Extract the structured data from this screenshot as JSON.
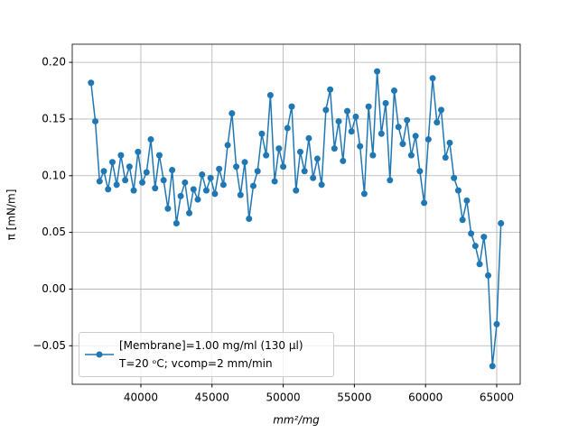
{
  "chart_data": {
    "type": "line",
    "xlabel": "mm²/mg",
    "ylabel": "π [mN/m]",
    "x": [
      36500,
      36800,
      37100,
      37400,
      37700,
      38000,
      38300,
      38600,
      38900,
      39200,
      39500,
      39800,
      40100,
      40400,
      40700,
      41000,
      41300,
      41600,
      41900,
      42200,
      42500,
      42800,
      43100,
      43400,
      43700,
      44000,
      44300,
      44600,
      44900,
      45200,
      45500,
      45800,
      46100,
      46400,
      46700,
      47000,
      47300,
      47600,
      47900,
      48200,
      48500,
      48800,
      49100,
      49400,
      49700,
      50000,
      50300,
      50600,
      50900,
      51200,
      51500,
      51800,
      52100,
      52400,
      52700,
      53000,
      53300,
      53600,
      53900,
      54200,
      54500,
      54800,
      55100,
      55400,
      55700,
      56000,
      56300,
      56600,
      56900,
      57200,
      57500,
      57800,
      58100,
      58400,
      58700,
      59000,
      59300,
      59600,
      59900,
      60200,
      60500,
      60800,
      61100,
      61400,
      61700,
      62000,
      62300,
      62600,
      62900,
      63200,
      63500,
      63800,
      64100,
      64400,
      64700,
      65000,
      65300
    ],
    "series": [
      {
        "name": "[Membrane]=1.00 mg/ml (130 µl)\nT=20 ᵒC; vcomp=2 mm/min",
        "color": "#1f77b4",
        "values": [
          0.182,
          0.148,
          0.095,
          0.104,
          0.088,
          0.112,
          0.092,
          0.118,
          0.096,
          0.108,
          0.087,
          0.121,
          0.094,
          0.103,
          0.132,
          0.089,
          0.118,
          0.096,
          0.071,
          0.105,
          0.058,
          0.082,
          0.094,
          0.067,
          0.088,
          0.079,
          0.101,
          0.087,
          0.098,
          0.084,
          0.106,
          0.092,
          0.127,
          0.155,
          0.108,
          0.083,
          0.112,
          0.062,
          0.091,
          0.104,
          0.137,
          0.118,
          0.171,
          0.095,
          0.124,
          0.108,
          0.142,
          0.161,
          0.087,
          0.121,
          0.104,
          0.133,
          0.098,
          0.115,
          0.092,
          0.158,
          0.176,
          0.124,
          0.148,
          0.113,
          0.157,
          0.139,
          0.152,
          0.126,
          0.084,
          0.161,
          0.118,
          0.192,
          0.137,
          0.164,
          0.096,
          0.175,
          0.143,
          0.128,
          0.149,
          0.118,
          0.135,
          0.104,
          0.076,
          0.132,
          0.186,
          0.147,
          0.158,
          0.116,
          0.129,
          0.098,
          0.087,
          0.061,
          0.078,
          0.049,
          0.038,
          0.022,
          0.046,
          0.012,
          -0.068,
          -0.031,
          0.058
        ]
      }
    ],
    "xlim": [
      35180,
      66650
    ],
    "ylim": [
      -0.084,
      0.216
    ],
    "xticks": [
      40000,
      45000,
      50000,
      55000,
      60000,
      65000
    ],
    "yticks": [
      {
        "value": -0.05,
        "label": "−0.05"
      },
      {
        "value": 0,
        "label": "0.00"
      },
      {
        "value": 0.05,
        "label": "0.05"
      },
      {
        "value": 0.1,
        "label": "0.10"
      },
      {
        "value": 0.15,
        "label": "0.15"
      },
      {
        "value": 0.2,
        "label": "0.20"
      }
    ],
    "grid": true,
    "legend": "lower left"
  }
}
